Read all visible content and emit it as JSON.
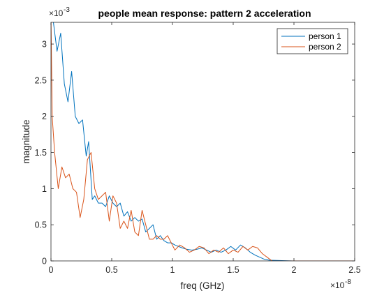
{
  "chart_data": {
    "type": "line",
    "title": "people mean response: pattern 2 acceleration",
    "xlabel": "freq (GHz)",
    "ylabel": "magnitude",
    "x_exponent_label": "×10",
    "x_exponent": "-8",
    "y_exponent_label": "×10",
    "y_exponent": "-3",
    "xlim": [
      0,
      2.5e-08
    ],
    "ylim": [
      0,
      0.0033
    ],
    "x_ticks": [
      0,
      5e-09,
      1e-08,
      1.5e-08,
      2e-08,
      2.5e-08
    ],
    "x_tick_labels": [
      "0",
      "0.5",
      "1",
      "1.5",
      "2",
      "2.5"
    ],
    "y_ticks": [
      0,
      0.0005,
      0.001,
      0.0015,
      0.002,
      0.0025,
      0.003
    ],
    "y_tick_labels": [
      "0",
      "0.5",
      "1",
      "1.5",
      "2",
      "2.5",
      "3"
    ],
    "grid": false,
    "legend_position": "top-right",
    "series": [
      {
        "name": "person 1",
        "color": "#0072BD",
        "x": [
          0,
          2e-10,
          5e-10,
          8e-10,
          1.1e-09,
          1.4e-09,
          1.7e-09,
          2e-09,
          2.3e-09,
          2.6e-09,
          2.9e-09,
          3.1e-09,
          3.4e-09,
          3.6e-09,
          3.9e-09,
          4.2e-09,
          4.5e-09,
          4.8e-09,
          5.1e-09,
          5.4e-09,
          5.7e-09,
          6e-09,
          6.3e-09,
          6.6e-09,
          6.9e-09,
          7.2e-09,
          7.5e-09,
          7.8e-09,
          8.1e-09,
          8.4e-09,
          8.7e-09,
          9e-09,
          9.3e-09,
          9.6e-09,
          9.9e-09,
          1.02e-08,
          1.05e-08,
          1.08e-08,
          1.12e-08,
          1.16e-08,
          1.2e-08,
          1.24e-08,
          1.28e-08,
          1.32e-08,
          1.36e-08,
          1.4e-08,
          1.44e-08,
          1.48e-08,
          1.52e-08,
          1.56e-08,
          1.6e-08,
          1.64e-08,
          1.68e-08,
          1.72e-08,
          1.76e-08,
          1.8e-08,
          2e-08,
          2.2e-08,
          2.5e-08
        ],
        "y": [
          0.0034,
          0.0033,
          0.0029,
          0.00315,
          0.00245,
          0.0022,
          0.00262,
          0.002,
          0.0019,
          0.00195,
          0.00145,
          0.00165,
          0.00085,
          0.0009,
          0.0008,
          0.0008,
          0.00075,
          0.0009,
          0.0008,
          0.00075,
          0.0008,
          0.00062,
          0.00068,
          0.00055,
          0.0006,
          0.00055,
          0.00058,
          0.0004,
          0.00045,
          0.0005,
          0.0003,
          0.00035,
          0.00028,
          0.00025,
          0.00025,
          0.00022,
          0.0002,
          0.00018,
          0.00016,
          0.00015,
          0.00016,
          0.00018,
          0.00015,
          0.00012,
          0.00015,
          0.00012,
          0.00015,
          0.0002,
          0.00015,
          0.00022,
          0.00018,
          0.00012,
          8e-05,
          5e-05,
          2e-05,
          1e-05,
          0,
          0,
          0
        ]
      },
      {
        "name": "person 2",
        "color": "#D95319",
        "x": [
          0,
          1e-10,
          3e-10,
          6e-10,
          9e-10,
          1.2e-09,
          1.5e-09,
          1.8e-09,
          2.1e-09,
          2.4e-09,
          2.7e-09,
          3e-09,
          3.3e-09,
          3.6e-09,
          3.9e-09,
          4.2e-09,
          4.5e-09,
          4.8e-09,
          5.1e-09,
          5.4e-09,
          5.7e-09,
          6e-09,
          6.3e-09,
          6.6e-09,
          6.9e-09,
          7.2e-09,
          7.5e-09,
          7.8e-09,
          8.1e-09,
          8.4e-09,
          8.7e-09,
          9e-09,
          9.3e-09,
          9.6e-09,
          9.9e-09,
          1.02e-08,
          1.06e-08,
          1.1e-08,
          1.14e-08,
          1.18e-08,
          1.22e-08,
          1.26e-08,
          1.3e-08,
          1.34e-08,
          1.38e-08,
          1.42e-08,
          1.46e-08,
          1.5e-08,
          1.54e-08,
          1.58e-08,
          1.62e-08,
          1.66e-08,
          1.7e-08,
          1.74e-08,
          1.78e-08,
          1.82e-08,
          2e-08,
          2.2e-08,
          2.5e-08
        ],
        "y": [
          0.0034,
          0.002,
          0.0015,
          0.001,
          0.0013,
          0.00115,
          0.0012,
          0.001,
          0.00095,
          0.0006,
          0.00085,
          0.0014,
          0.0015,
          0.001,
          0.00085,
          0.0009,
          0.00095,
          0.00055,
          0.0009,
          0.0008,
          0.00045,
          0.00055,
          0.00045,
          0.0007,
          0.0004,
          0.00035,
          0.0007,
          0.0005,
          0.0003,
          0.0003,
          0.00035,
          0.0003,
          0.0003,
          0.00035,
          0.00025,
          0.00015,
          0.00022,
          0.00018,
          0.00012,
          0.00015,
          0.0002,
          0.00018,
          0.0001,
          0.00015,
          0.00012,
          0.00018,
          0.0001,
          0.00015,
          0.00012,
          0.0002,
          0.00015,
          0.0002,
          0.00018,
          0.0001,
          5e-05,
          0,
          0,
          0,
          0
        ]
      }
    ]
  }
}
